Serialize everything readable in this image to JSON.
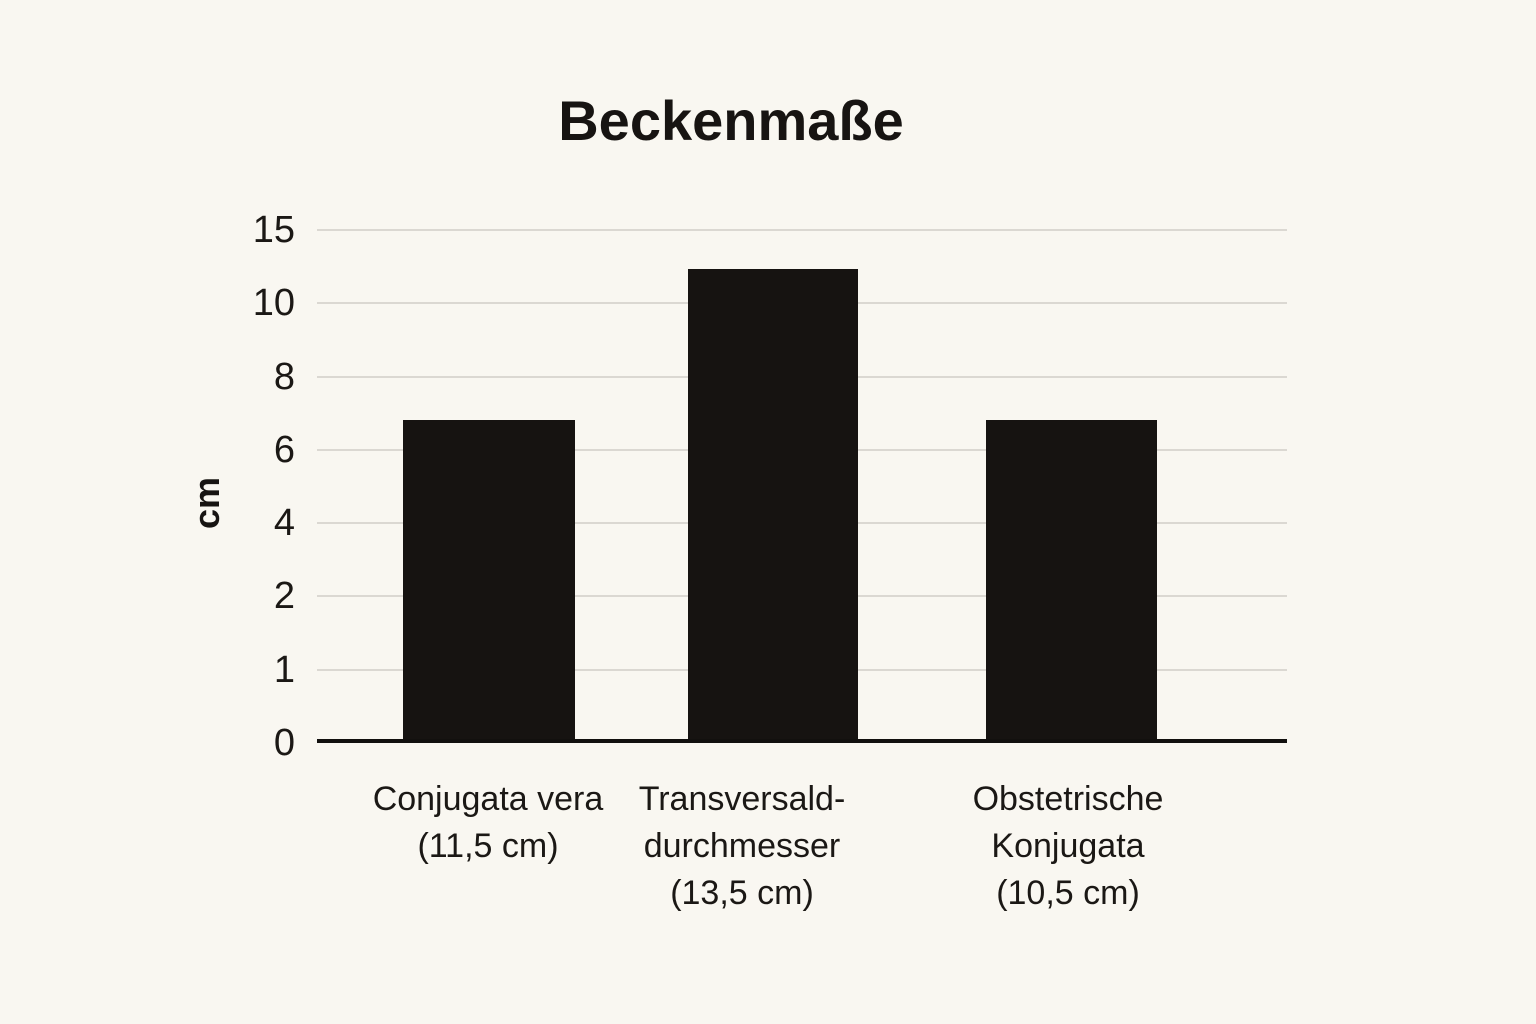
{
  "title": "Beckenmaße",
  "y_axis_label": "cm",
  "colors": {
    "background": "#f9f7f1",
    "bar": "#161311",
    "gridline": "#dbd8d2",
    "axis_line": "#12100e",
    "text": "#1b1815"
  },
  "chart_data": {
    "type": "bar",
    "title": "Beckenmaße",
    "xlabel": "",
    "ylabel": "cm",
    "unit": "cm",
    "grid": true,
    "legend": "none",
    "ytick_labels": [
      "15",
      "10",
      "8",
      "6",
      "4",
      "2",
      "1",
      "0"
    ],
    "ytick_values": [
      15,
      10,
      8,
      6,
      4,
      2,
      1,
      0
    ],
    "axis_note": "y ticks are evenly spaced despite non-uniform values",
    "categories": [
      "Conjugata vera (11,5 cm)",
      "Transversald- durchmesser (13,5 cm)",
      "Obstetrische Konjugata (10,5 cm)"
    ],
    "values": [
      11.5,
      13.5,
      10.5
    ],
    "value_labels": [
      "(11,5 cm)",
      "(13,5 cm)",
      "(10,5 cm)"
    ],
    "drawn_bar_height_pct_of_axis": [
      63.0,
      92.4,
      63.0
    ],
    "category_label_lines": [
      [
        "Conjugata vera",
        "(11,5 cm)"
      ],
      [
        "Transversald-",
        "durchmesser",
        "(13,5 cm)"
      ],
      [
        "Obstetrische",
        "Konjugata",
        "(10,5 cm)"
      ]
    ]
  }
}
